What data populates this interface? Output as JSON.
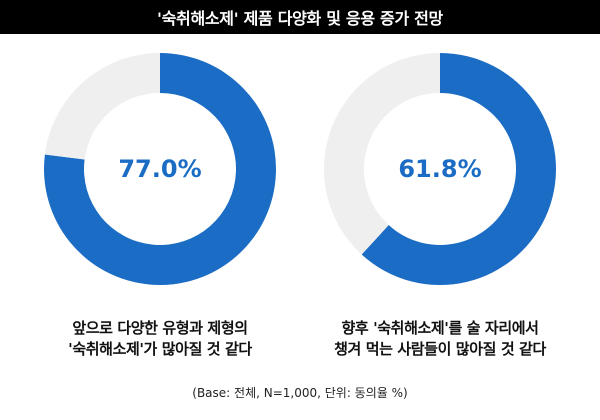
{
  "header": {
    "title": "'숙취해소제' 제품 다양화 및 응용 증가 전망"
  },
  "colors": {
    "accent": "#1b6cc4",
    "track": "#efefef",
    "header_bg": "#000000"
  },
  "chart_data": [
    {
      "type": "pie",
      "style": "donut",
      "value": 77.0,
      "remainder": 23.0,
      "center_label": "77.0%",
      "caption_lines": [
        "앞으로 다양한 유형과 제형의",
        "'숙취해소제'가 많아질 것 같다"
      ]
    },
    {
      "type": "pie",
      "style": "donut",
      "value": 61.8,
      "remainder": 38.2,
      "center_label": "61.8%",
      "caption_lines": [
        "향후 '숙취해소제'를 술 자리에서",
        "챙겨 먹는 사람들이 많아질 것 같다"
      ]
    }
  ],
  "footnote": "(Base: 전체, N=1,000, 단위: 동의율 %)"
}
